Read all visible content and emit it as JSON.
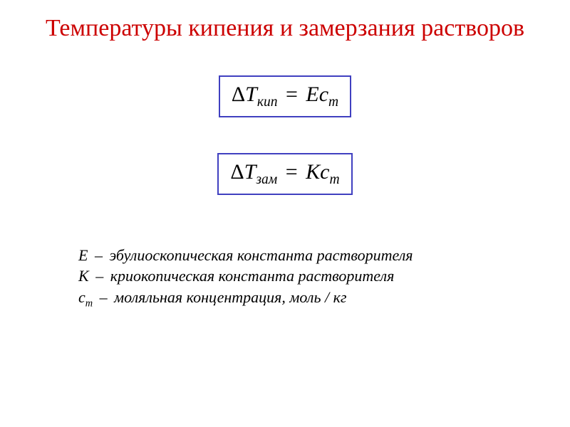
{
  "title": {
    "text": "Температуры кипения и замерзания растворов",
    "color": "#cc0000",
    "fontsize": 34
  },
  "formula1": {
    "delta": "Δ",
    "var": "T",
    "subscript": "кип",
    "equals": "=",
    "rhs_coeff": "E",
    "rhs_var": "c",
    "rhs_sub": "m",
    "fontsize": 30,
    "color": "#000000",
    "border_color": "#4040c0"
  },
  "formula2": {
    "delta": "Δ",
    "var": "T",
    "subscript": "зам",
    "equals": "=",
    "rhs_coeff": "K",
    "rhs_var": "c",
    "rhs_sub": "m",
    "fontsize": 30,
    "color": "#000000",
    "border_color": "#4040c0"
  },
  "legend": {
    "fontsize": 22,
    "color": "#000000",
    "line1": {
      "symbol": "E",
      "dash": "–",
      "text": "эбулиоскопическая константа растворителя"
    },
    "line2": {
      "symbol": "K",
      "dash": "–",
      "text": "криокопическая константа растворителя"
    },
    "line3": {
      "symbol_main": "c",
      "symbol_sub": "m",
      "dash": "–",
      "text": "моляльная концентрация, моль / кг"
    }
  }
}
